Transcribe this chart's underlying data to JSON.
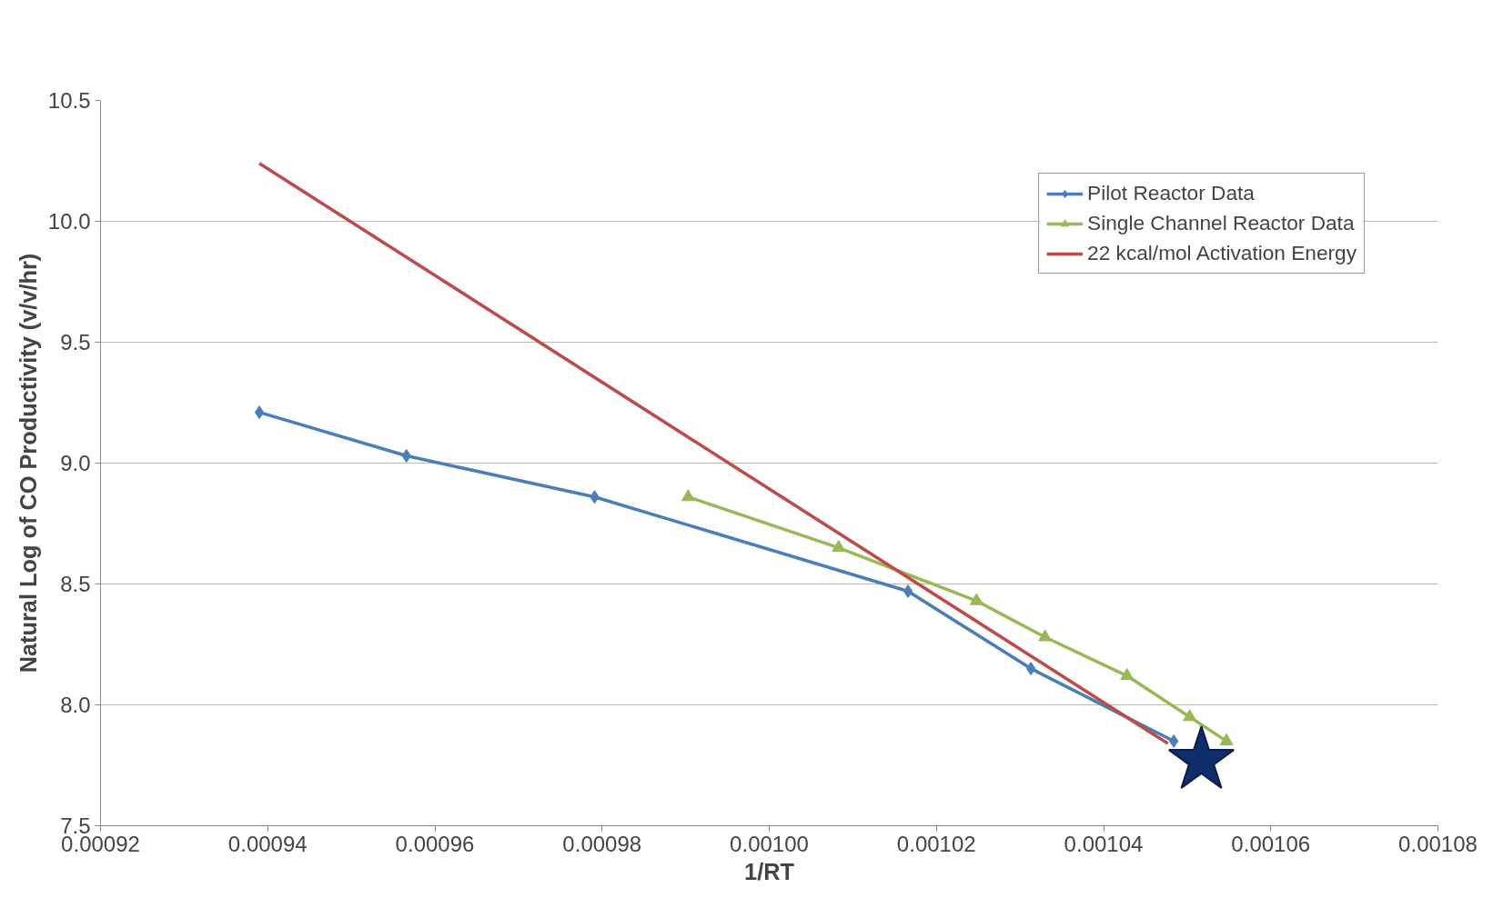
{
  "chart_data": {
    "type": "line",
    "xlabel": "1/RT",
    "ylabel": "Natural Log of CO Productivity (v/v/hr)",
    "xlim": [
      0.00092,
      0.00108
    ],
    "xticks": [
      {
        "value": 0.00092,
        "label": "0.00092"
      },
      {
        "value": 0.00094,
        "label": "0.00094"
      },
      {
        "value": 0.00096,
        "label": "0.00096"
      },
      {
        "value": 0.00098,
        "label": "0.00098"
      },
      {
        "value": 0.001,
        "label": "0.00100"
      },
      {
        "value": 0.00102,
        "label": "0.00102"
      },
      {
        "value": 0.00104,
        "label": "0.00104"
      },
      {
        "value": 0.00106,
        "label": "0.00106"
      },
      {
        "value": 0.00108,
        "label": "0.00108"
      }
    ],
    "ylim": [
      7.5,
      10.5
    ],
    "yticks": [
      7.5,
      {
        "value": 8,
        "label": "8.0"
      },
      8.5,
      {
        "value": 9,
        "label": "9.0"
      },
      9.5,
      {
        "value": 10,
        "label": "10.0"
      },
      10.5
    ],
    "grid": "y",
    "legend": "top right",
    "series": [
      {
        "name": "Pilot Reactor Data",
        "color": "#4a7ebb",
        "marker": "diamond",
        "x": [
          0.000939,
          0.0009566,
          0.0009791,
          0.0010166,
          0.0010313,
          0.0010484
        ],
        "values": [
          9.21,
          9.03,
          8.86,
          8.47,
          8.15,
          7.85
        ]
      },
      {
        "name": "Single Channel Reactor Data",
        "color": "#98b954",
        "marker": "triangle",
        "x": [
          0.0009903,
          0.0010083,
          0.0010248,
          0.001033,
          0.0010428,
          0.0010503,
          0.0010547
        ],
        "values": [
          8.86,
          8.65,
          8.43,
          8.28,
          8.12,
          7.95,
          7.85
        ]
      },
      {
        "name": "22 kcal/mol Activation Energy",
        "color": "#be4b48",
        "marker": "none",
        "x": [
          0.000939,
          0.0010477
        ],
        "values": [
          10.24,
          7.84
        ]
      },
      {
        "type": "scatter",
        "color": "#0f2d69",
        "marker": "star",
        "x": [
          0.0010517
        ],
        "values": [
          7.77
        ]
      }
    ]
  }
}
